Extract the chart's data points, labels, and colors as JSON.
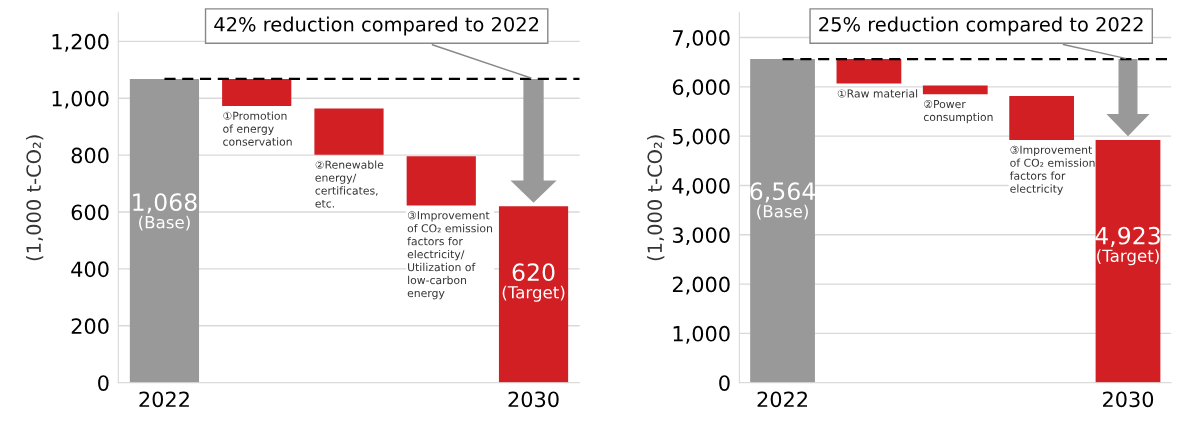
{
  "chart_data": [
    {
      "type": "bar",
      "categories": [
        "2022",
        null,
        null,
        null,
        "2030"
      ],
      "values": [
        1068,
        95,
        163,
        173,
        620
      ],
      "base": [
        0,
        973,
        801,
        623,
        0
      ],
      "colors": [
        "#999999",
        "#d11f24",
        "#d11f24",
        "#d11f24",
        "#d11f24"
      ],
      "value_labels": [
        "1,068\n(Base)",
        null,
        null,
        null,
        "620\n(Target)"
      ],
      "ylabel": "(1,000 t-CO₂)",
      "ylim": [
        0,
        1300
      ],
      "yticks": [
        0,
        200,
        400,
        600,
        800,
        {
          "value": 1000,
          "label": "1,000"
        },
        {
          "value": 1200,
          "label": "1,200"
        }
      ],
      "grid": "y",
      "ref_lines": [
        {
          "axis": "y",
          "value": 1068,
          "color": "#000000",
          "line_style": "dashed"
        }
      ],
      "annotations": [
        {
          "text": "42% reduction compared to 2022",
          "x": "2030",
          "y": 1068
        },
        "①Promotion\nof energy\nconservation",
        "②Renewable\nenergy/\ncertificates,\netc.",
        "③Improvement\nof CO₂ emission\nfactors for\nelectricity/\nUtilization of\nlow-carbon\nenergy"
      ]
    },
    {
      "type": "bar",
      "categories": [
        "2022",
        null,
        null,
        null,
        "2030"
      ],
      "values": [
        6564,
        498,
        177,
        890,
        4923
      ],
      "base": [
        0,
        6066,
        5851,
        4923,
        0
      ],
      "colors": [
        "#999999",
        "#d11f24",
        "#d11f24",
        "#d11f24",
        "#d11f24"
      ],
      "value_labels": [
        "6,564\n(Base)",
        null,
        null,
        null,
        "4,923\n(Target)"
      ],
      "ylabel": "(1,000 t-CO₂)",
      "ylim": [
        0,
        7500
      ],
      "yticks": [
        0,
        {
          "value": 1000,
          "label": "1,000"
        },
        {
          "value": 2000,
          "label": "2,000"
        },
        {
          "value": 3000,
          "label": "3,000"
        },
        {
          "value": 4000,
          "label": "4,000"
        },
        {
          "value": 5000,
          "label": "5,000"
        },
        {
          "value": 6000,
          "label": "6,000"
        },
        {
          "value": 7000,
          "label": "7,000"
        }
      ],
      "grid": "y",
      "ref_lines": [
        {
          "axis": "y",
          "value": 6564,
          "color": "#000000",
          "line_style": "dashed"
        }
      ],
      "annotations": [
        {
          "text": "25% reduction compared to 2022",
          "x": "2030",
          "y": 6564
        },
        "①Raw material",
        "②Power\nconsumption",
        "③Improvement\nof CO₂ emission\nfactors for\nelectricity"
      ]
    }
  ]
}
